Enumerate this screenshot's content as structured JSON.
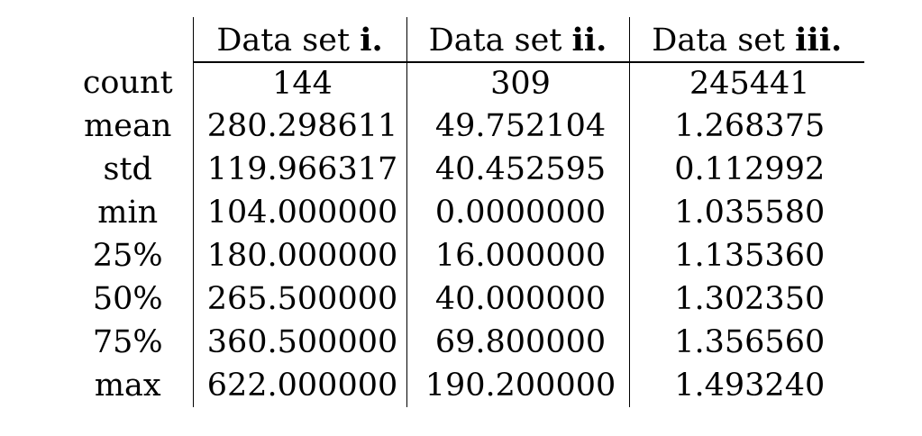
{
  "table": {
    "columns": [
      {
        "prefix": "Data set",
        "numeral": "i."
      },
      {
        "prefix": "Data set",
        "numeral": "ii."
      },
      {
        "prefix": "Data set",
        "numeral": "iii."
      }
    ],
    "rows": [
      {
        "label": "count",
        "values": [
          "144",
          "309",
          "245441"
        ]
      },
      {
        "label": "mean",
        "values": [
          "280.298611",
          "49.752104",
          "1.268375"
        ]
      },
      {
        "label": "std",
        "values": [
          "119.966317",
          "40.452595",
          "0.112992"
        ]
      },
      {
        "label": "min",
        "values": [
          "104.000000",
          "0.0000000",
          "1.035580"
        ]
      },
      {
        "label": "25%",
        "values": [
          "180.000000",
          "16.000000",
          "1.135360"
        ]
      },
      {
        "label": "50%",
        "values": [
          "265.500000",
          "40.000000",
          "1.302350"
        ]
      },
      {
        "label": "75%",
        "values": [
          "360.500000",
          "69.800000",
          "1.356560"
        ]
      },
      {
        "label": "max",
        "values": [
          "622.000000",
          "190.200000",
          "1.493240"
        ]
      }
    ]
  }
}
